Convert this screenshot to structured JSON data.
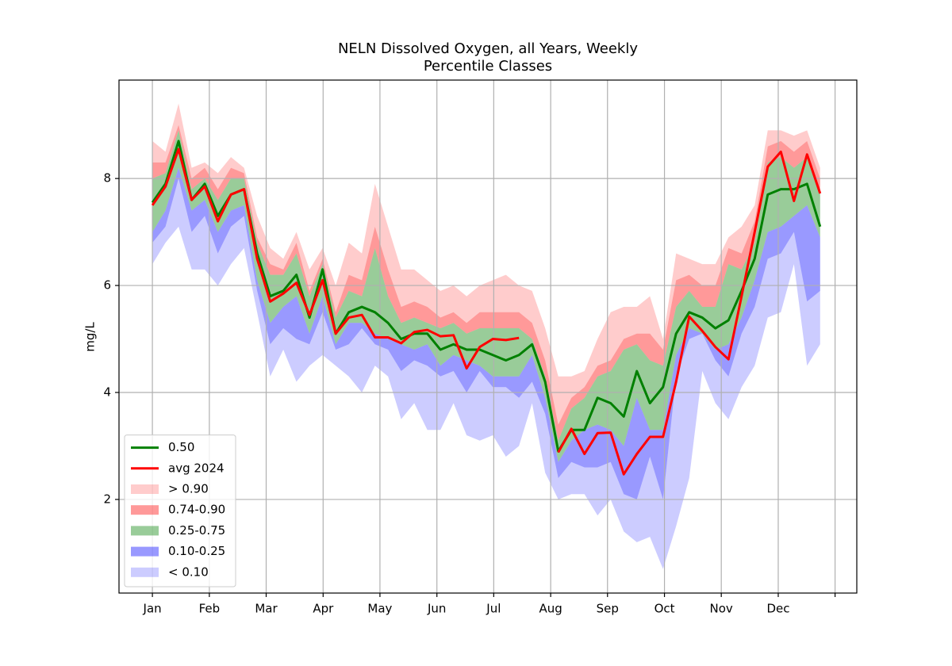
{
  "chart_data": {
    "type": "line",
    "title": [
      "NELN Dissolved Oxygen, all Years, Weekly",
      "Percentile Classes"
    ],
    "ylabel": "mg/L",
    "x": [
      0,
      1,
      2,
      3,
      4,
      5,
      6,
      7,
      8,
      9,
      10,
      11,
      12,
      13,
      14,
      15,
      16,
      17,
      18,
      19,
      20,
      21,
      22,
      23,
      24,
      25,
      26,
      27,
      28,
      29,
      30,
      31,
      32,
      33,
      34,
      35,
      36,
      37,
      38,
      39,
      40,
      41,
      42,
      43,
      44,
      45,
      46,
      47,
      48,
      49,
      50,
      51
    ],
    "xlim": [
      -2.55,
      53.8
    ],
    "xticks": [
      {
        "value": 0,
        "label": "Jan"
      },
      {
        "value": 4.35,
        "label": "Feb"
      },
      {
        "value": 8.69,
        "label": "Mar"
      },
      {
        "value": 13.04,
        "label": "Apr"
      },
      {
        "value": 17.38,
        "label": "May"
      },
      {
        "value": 21.73,
        "label": "Jun"
      },
      {
        "value": 26.07,
        "label": "Jul"
      },
      {
        "value": 30.42,
        "label": "Aug"
      },
      {
        "value": 34.76,
        "label": "Sep"
      },
      {
        "value": 39.11,
        "label": "Oct"
      },
      {
        "value": 43.45,
        "label": "Nov"
      },
      {
        "value": 47.8,
        "label": "Dec"
      },
      {
        "value": 52.14,
        "label": null
      }
    ],
    "ylim": [
      0.25,
      9.84
    ],
    "yticks": [
      2,
      4,
      6,
      8
    ],
    "grid": true,
    "legend": "lower left",
    "series": [
      {
        "name": "0.50",
        "color": "#008000",
        "values": [
          7.55,
          7.9,
          8.7,
          7.6,
          7.9,
          7.3,
          7.7,
          7.8,
          6.6,
          5.8,
          5.9,
          6.2,
          5.4,
          6.3,
          5.1,
          5.5,
          5.6,
          5.5,
          5.3,
          5.0,
          5.1,
          5.1,
          4.8,
          4.9,
          4.8,
          4.8,
          4.7,
          4.6,
          4.7,
          4.9,
          4.2,
          2.9,
          3.3,
          3.3,
          3.9,
          3.8,
          3.55,
          4.4,
          3.8,
          4.1,
          5.1,
          5.5,
          5.4,
          5.2,
          5.35,
          5.9,
          6.5,
          7.7,
          7.8,
          7.8,
          7.9,
          7.1
        ]
      },
      {
        "name": "avg 2024",
        "color": "#ff0000",
        "values": [
          7.5,
          7.85,
          8.55,
          7.6,
          7.85,
          7.2,
          7.7,
          7.8,
          6.5,
          5.7,
          5.85,
          6.05,
          5.45,
          6.1,
          5.1,
          5.4,
          5.45,
          5.03,
          5.03,
          4.92,
          5.13,
          5.17,
          5.05,
          5.07,
          4.45,
          4.85,
          5.0,
          4.98,
          5.02,
          null,
          null,
          2.88,
          3.32,
          2.85,
          3.24,
          3.25,
          2.47,
          2.85,
          3.17,
          3.17,
          4.2,
          5.42,
          5.15,
          4.85,
          4.62,
          5.8,
          7.0,
          8.22,
          8.5,
          7.58,
          8.45,
          7.72
        ]
      }
    ],
    "bands": [
      {
        "name": "> 0.90",
        "color": "#ff0000",
        "alpha": 0.2,
        "upper": [
          8.7,
          8.5,
          9.4,
          8.2,
          8.3,
          8.1,
          8.4,
          8.2,
          7.3,
          6.7,
          6.5,
          7.0,
          6.3,
          6.7,
          6.0,
          6.8,
          6.6,
          7.9,
          7.1,
          6.3,
          6.3,
          6.1,
          5.9,
          6.0,
          5.8,
          6.0,
          6.1,
          6.2,
          6.0,
          5.9,
          5.2,
          4.3,
          4.3,
          4.4,
          5.0,
          5.5,
          5.6,
          5.6,
          5.8,
          5.0,
          6.6,
          6.5,
          6.4,
          6.4,
          6.9,
          7.1,
          7.5,
          8.9,
          8.9,
          8.8,
          8.9,
          8.2
        ],
        "lower": [
          8.3,
          8.3,
          9.0,
          8.0,
          8.2,
          7.8,
          8.2,
          8.1,
          6.9,
          6.4,
          6.3,
          6.8,
          5.9,
          6.5,
          5.5,
          6.2,
          6.1,
          7.1,
          6.3,
          5.6,
          5.7,
          5.6,
          5.4,
          5.5,
          5.3,
          5.5,
          5.5,
          5.5,
          5.5,
          5.3,
          4.6,
          3.4,
          3.9,
          4.1,
          4.5,
          4.6,
          5.0,
          5.1,
          5.1,
          4.8,
          6.1,
          6.2,
          6.0,
          6.0,
          6.7,
          6.6,
          7.2,
          8.6,
          8.7,
          8.5,
          8.7,
          8.0
        ]
      },
      {
        "name": "0.74-0.90",
        "color": "#ff0000",
        "alpha": 0.4,
        "upper": [
          8.3,
          8.3,
          9.0,
          8.0,
          8.2,
          7.8,
          8.2,
          8.1,
          6.9,
          6.4,
          6.3,
          6.8,
          5.9,
          6.5,
          5.5,
          6.2,
          6.1,
          7.1,
          6.3,
          5.6,
          5.7,
          5.6,
          5.4,
          5.5,
          5.3,
          5.5,
          5.5,
          5.5,
          5.5,
          5.3,
          4.6,
          3.4,
          3.9,
          4.1,
          4.5,
          4.6,
          5.0,
          5.1,
          5.1,
          4.8,
          6.1,
          6.2,
          6.0,
          6.0,
          6.7,
          6.6,
          7.2,
          8.6,
          8.7,
          8.5,
          8.7,
          8.0
        ],
        "lower": [
          8.0,
          8.1,
          8.9,
          7.8,
          8.0,
          7.6,
          8.0,
          8.0,
          6.8,
          6.2,
          6.2,
          6.6,
          5.8,
          6.4,
          5.4,
          5.9,
          5.8,
          6.7,
          5.8,
          5.3,
          5.4,
          5.3,
          5.2,
          5.3,
          5.1,
          5.2,
          5.2,
          5.2,
          5.2,
          5.0,
          4.3,
          3.1,
          3.7,
          3.9,
          4.3,
          4.4,
          4.8,
          4.9,
          4.6,
          4.5,
          5.6,
          5.9,
          5.6,
          5.6,
          6.4,
          6.3,
          6.8,
          8.3,
          8.4,
          8.2,
          8.4,
          7.7
        ]
      },
      {
        "name": "0.25-0.75",
        "color": "#008000",
        "alpha": 0.4,
        "upper": [
          8.0,
          8.1,
          8.9,
          7.8,
          8.0,
          7.6,
          8.0,
          8.0,
          6.8,
          6.2,
          6.2,
          6.6,
          5.8,
          6.4,
          5.4,
          5.9,
          5.8,
          6.7,
          5.8,
          5.3,
          5.4,
          5.3,
          5.2,
          5.3,
          5.1,
          5.2,
          5.2,
          5.2,
          5.2,
          5.0,
          4.3,
          3.1,
          3.7,
          3.9,
          4.3,
          4.4,
          4.8,
          4.9,
          4.6,
          4.5,
          5.6,
          5.9,
          5.6,
          5.6,
          6.4,
          6.3,
          6.8,
          8.3,
          8.4,
          8.2,
          8.4,
          7.7
        ],
        "lower": [
          7.0,
          7.4,
          8.2,
          7.4,
          7.6,
          7.0,
          7.4,
          7.5,
          6.1,
          5.3,
          5.6,
          5.8,
          5.1,
          5.8,
          4.9,
          5.3,
          5.3,
          5.1,
          5.0,
          4.9,
          4.8,
          4.9,
          4.5,
          4.7,
          4.6,
          4.5,
          4.3,
          4.3,
          4.3,
          4.7,
          3.9,
          2.7,
          3.1,
          3.3,
          3.4,
          3.3,
          3.0,
          3.9,
          3.3,
          3.3,
          4.7,
          5.2,
          5.1,
          4.8,
          4.9,
          5.4,
          6.1,
          7.0,
          7.1,
          7.3,
          7.5,
          6.9
        ]
      },
      {
        "name": "0.10-0.25",
        "color": "#0000ff",
        "alpha": 0.4,
        "upper": [
          7.0,
          7.4,
          8.2,
          7.4,
          7.6,
          7.0,
          7.4,
          7.5,
          6.1,
          5.3,
          5.6,
          5.8,
          5.1,
          5.8,
          4.9,
          5.3,
          5.3,
          5.1,
          5.0,
          4.9,
          4.8,
          4.9,
          4.5,
          4.7,
          4.6,
          4.5,
          4.3,
          4.3,
          4.3,
          4.7,
          3.9,
          2.7,
          3.1,
          3.3,
          3.4,
          3.3,
          3.0,
          3.9,
          3.3,
          3.3,
          4.7,
          5.2,
          5.1,
          4.8,
          4.9,
          5.4,
          6.1,
          7.0,
          7.1,
          7.3,
          7.5,
          6.9
        ],
        "lower": [
          6.8,
          7.1,
          8.0,
          7.0,
          7.3,
          6.6,
          7.1,
          7.3,
          5.9,
          4.9,
          5.2,
          5.0,
          4.9,
          5.5,
          4.8,
          4.9,
          5.2,
          4.9,
          4.8,
          4.4,
          4.6,
          4.5,
          4.3,
          4.4,
          4.0,
          4.4,
          4.1,
          4.1,
          3.9,
          4.2,
          3.6,
          2.4,
          2.7,
          2.6,
          2.6,
          2.7,
          2.1,
          2.0,
          2.8,
          2.0,
          4.3,
          5.0,
          5.1,
          4.6,
          4.3,
          5.1,
          5.6,
          6.5,
          6.6,
          7.0,
          5.7,
          5.9
        ]
      },
      {
        "name": "< 0.10",
        "color": "#0000ff",
        "alpha": 0.2,
        "upper": [
          6.8,
          7.1,
          8.0,
          7.0,
          7.3,
          6.6,
          7.1,
          7.3,
          5.9,
          4.9,
          5.2,
          5.0,
          4.9,
          5.5,
          4.8,
          4.9,
          5.2,
          4.9,
          4.8,
          4.4,
          4.6,
          4.5,
          4.3,
          4.4,
          4.0,
          4.4,
          4.1,
          4.1,
          3.9,
          4.2,
          3.6,
          2.4,
          2.7,
          2.6,
          2.6,
          2.7,
          2.1,
          2.0,
          2.8,
          2.0,
          4.3,
          5.0,
          5.1,
          4.6,
          4.3,
          5.1,
          5.6,
          6.5,
          6.6,
          7.0,
          5.7,
          5.9
        ],
        "lower": [
          6.4,
          6.8,
          7.1,
          6.3,
          6.3,
          6.0,
          6.4,
          6.7,
          5.5,
          4.3,
          4.8,
          4.2,
          4.5,
          4.7,
          4.5,
          4.3,
          4.0,
          4.5,
          4.3,
          3.5,
          3.8,
          3.3,
          3.3,
          3.8,
          3.2,
          3.1,
          3.2,
          2.8,
          3.0,
          3.8,
          2.5,
          2.0,
          2.1,
          2.1,
          1.7,
          2.0,
          1.4,
          1.2,
          1.3,
          0.7,
          1.5,
          2.4,
          4.4,
          3.8,
          3.5,
          4.1,
          4.5,
          5.4,
          5.5,
          6.4,
          4.5,
          4.9
        ]
      }
    ]
  }
}
